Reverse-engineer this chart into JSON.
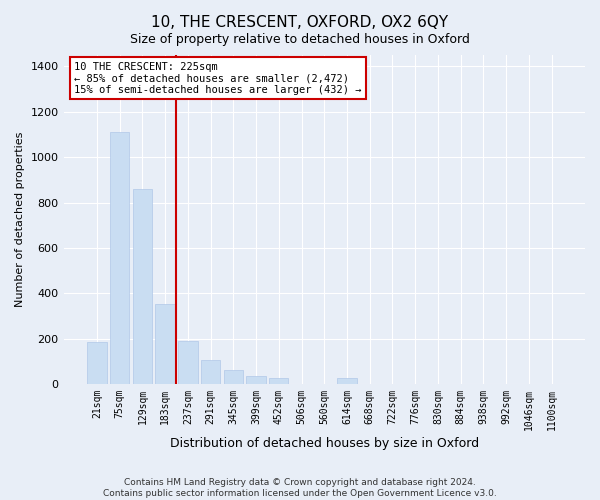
{
  "title": "10, THE CRESCENT, OXFORD, OX2 6QY",
  "subtitle": "Size of property relative to detached houses in Oxford",
  "xlabel": "Distribution of detached houses by size in Oxford",
  "ylabel": "Number of detached properties",
  "footnote": "Contains HM Land Registry data © Crown copyright and database right 2024.\nContains public sector information licensed under the Open Government Licence v3.0.",
  "categories": [
    "21sqm",
    "75sqm",
    "129sqm",
    "183sqm",
    "237sqm",
    "291sqm",
    "345sqm",
    "399sqm",
    "452sqm",
    "506sqm",
    "560sqm",
    "614sqm",
    "668sqm",
    "722sqm",
    "776sqm",
    "830sqm",
    "884sqm",
    "938sqm",
    "992sqm",
    "1046sqm",
    "1100sqm"
  ],
  "values": [
    185,
    1110,
    860,
    355,
    190,
    105,
    60,
    35,
    25,
    0,
    0,
    25,
    0,
    0,
    0,
    0,
    0,
    0,
    0,
    0,
    0
  ],
  "bar_color": "#c9ddf2",
  "bar_edge_color": "#b0c8e8",
  "vline_pos": 3.5,
  "vline_color": "#cc0000",
  "annotation_text": "10 THE CRESCENT: 225sqm\n← 85% of detached houses are smaller (2,472)\n15% of semi-detached houses are larger (432) →",
  "annotation_box_color": "#ffffff",
  "annotation_box_edge": "#cc0000",
  "ylim": [
    0,
    1450
  ],
  "yticks": [
    0,
    200,
    400,
    600,
    800,
    1000,
    1200,
    1400
  ],
  "background_color": "#e8eef7",
  "grid_color": "#ffffff",
  "title_fontsize": 11,
  "subtitle_fontsize": 9
}
